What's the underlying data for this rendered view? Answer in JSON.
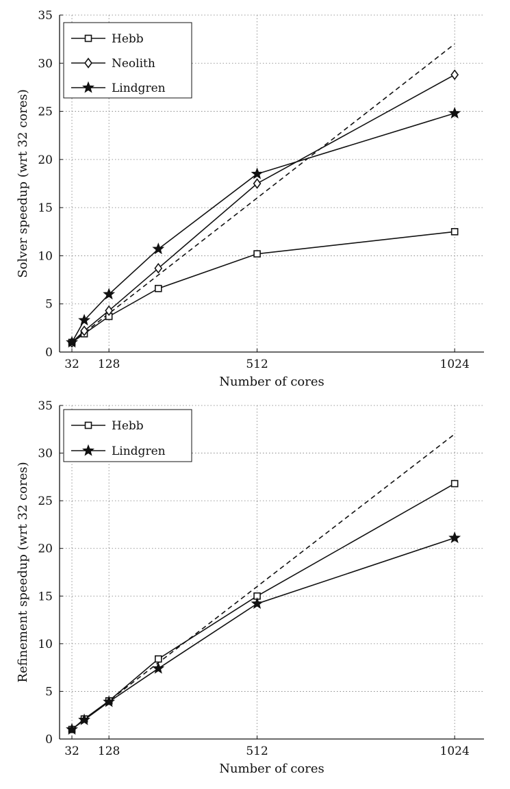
{
  "chart_data": [
    {
      "type": "line",
      "title": "",
      "xlabel": "Number of cores",
      "ylabel": "Solver speedup (wrt 32 cores)",
      "xlim": [
        0,
        1100
      ],
      "ylim": [
        0,
        35
      ],
      "xticks": [
        32,
        128,
        512,
        1024
      ],
      "yticks": [
        0,
        5,
        10,
        15,
        20,
        25,
        30,
        35
      ],
      "grid": true,
      "legend_position": "top-left",
      "ideal_line": {
        "style": "dashed",
        "x": [
          32,
          1024
        ],
        "y": [
          1,
          32
        ]
      },
      "series": [
        {
          "name": "Hebb",
          "marker": "square",
          "x": [
            32,
            64,
            128,
            256,
            512,
            1024
          ],
          "values": [
            1.0,
            1.9,
            3.7,
            6.6,
            10.2,
            12.5
          ]
        },
        {
          "name": "Neolith",
          "marker": "diamond",
          "x": [
            32,
            64,
            128,
            256,
            512,
            1024
          ],
          "values": [
            1.0,
            2.2,
            4.3,
            8.7,
            17.5,
            28.8
          ]
        },
        {
          "name": "Lindgren",
          "marker": "star",
          "x": [
            32,
            64,
            128,
            256,
            512,
            1024
          ],
          "values": [
            1.0,
            3.3,
            6.0,
            10.7,
            18.5,
            24.8
          ]
        }
      ]
    },
    {
      "type": "line",
      "title": "",
      "xlabel": "Number of cores",
      "ylabel": "Refinement speedup (wrt 32 cores)",
      "xlim": [
        0,
        1100
      ],
      "ylim": [
        0,
        35
      ],
      "xticks": [
        32,
        128,
        512,
        1024
      ],
      "yticks": [
        0,
        5,
        10,
        15,
        20,
        25,
        30,
        35
      ],
      "grid": true,
      "legend_position": "top-left",
      "ideal_line": {
        "style": "dashed",
        "x": [
          32,
          1024
        ],
        "y": [
          1,
          32
        ]
      },
      "series": [
        {
          "name": "Hebb",
          "marker": "square",
          "x": [
            32,
            64,
            128,
            256,
            512,
            1024
          ],
          "values": [
            1.0,
            2.1,
            4.0,
            8.4,
            15.0,
            26.8
          ]
        },
        {
          "name": "Lindgren",
          "marker": "star",
          "x": [
            32,
            64,
            128,
            256,
            512,
            1024
          ],
          "values": [
            1.0,
            2.0,
            3.9,
            7.4,
            14.2,
            21.1
          ]
        }
      ]
    }
  ]
}
